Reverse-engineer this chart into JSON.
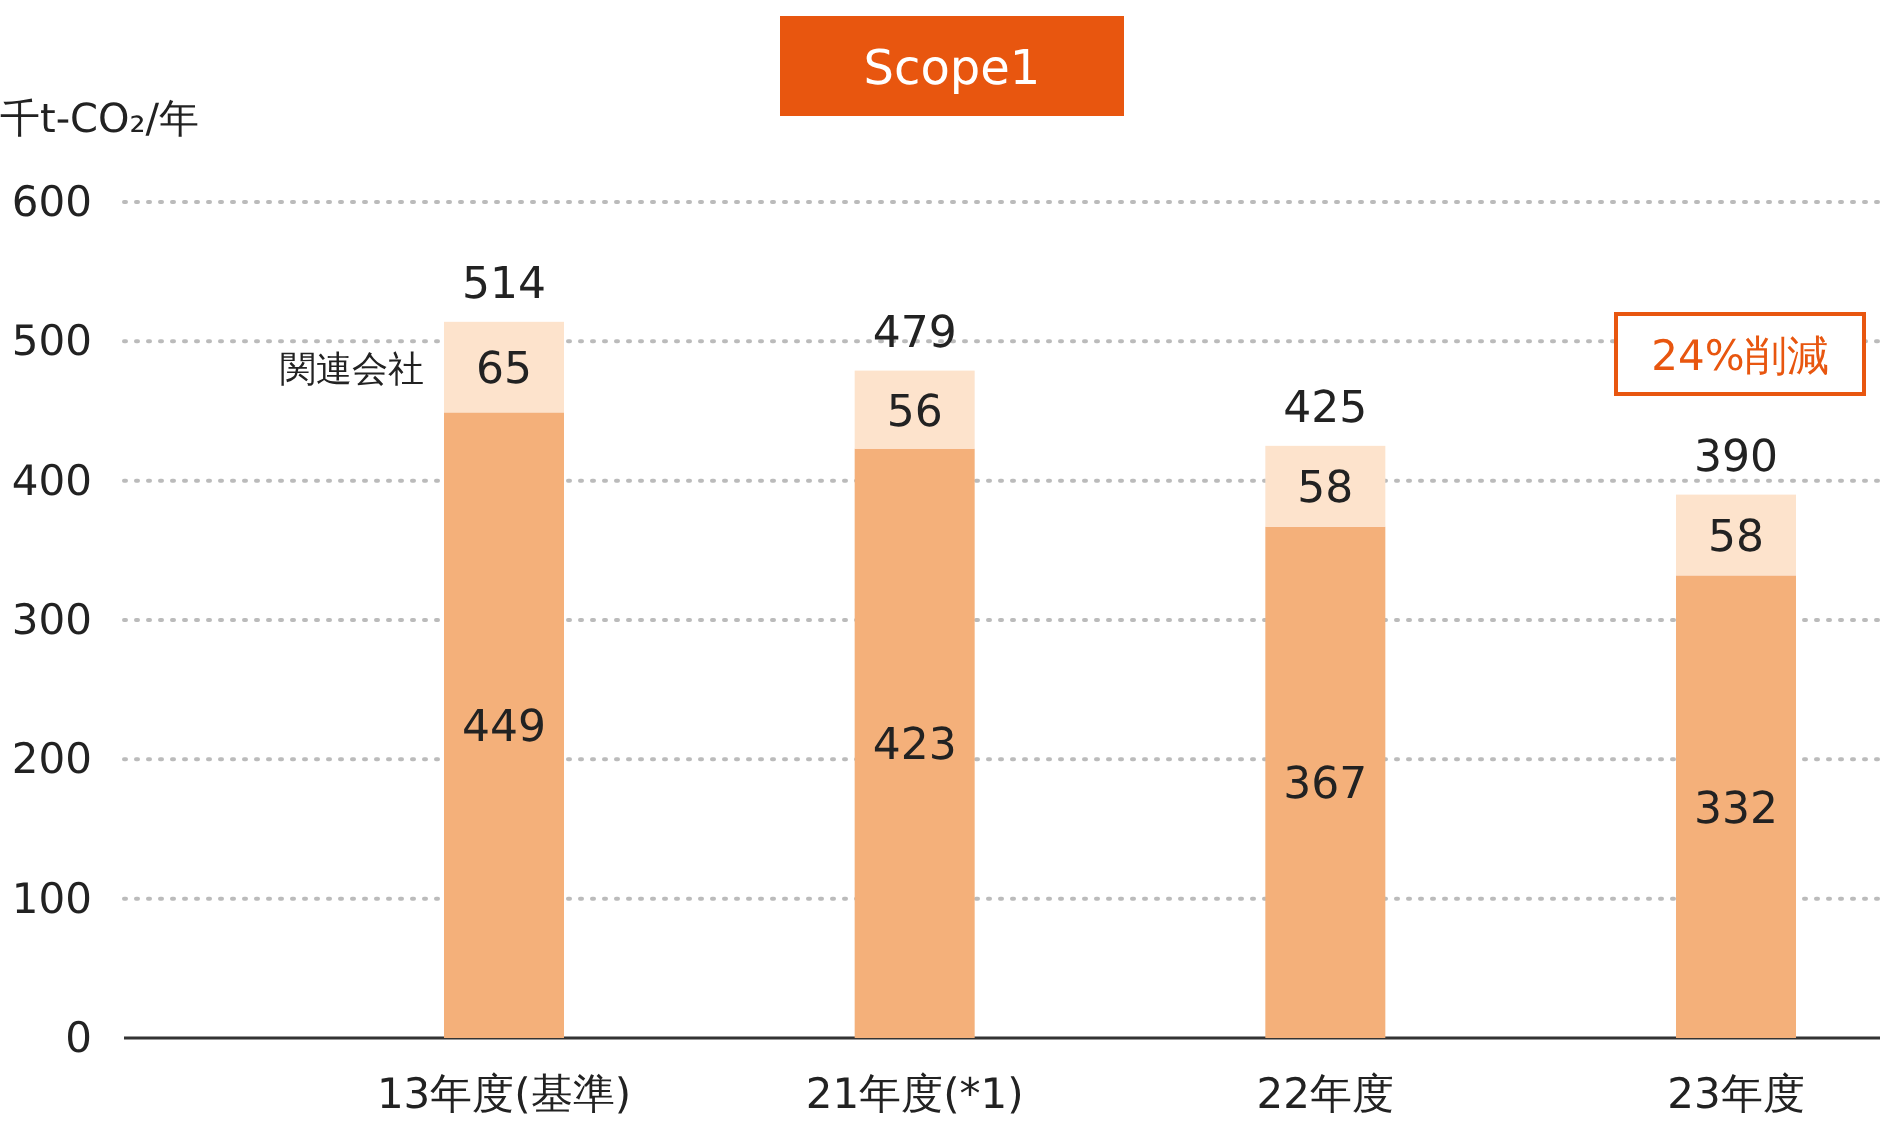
{
  "chart_data": {
    "type": "bar",
    "title": "Scope1",
    "ylabel": "千t-CO₂/年",
    "categories": [
      "13年度(基準)",
      "21年度(*1)",
      "22年度",
      "23年度"
    ],
    "series": [
      {
        "color": "#f4b07a",
        "values": [
          449,
          423,
          367,
          332
        ]
      },
      {
        "name": "関連会社",
        "color": "#fde3cc",
        "values": [
          65,
          56,
          58,
          58
        ]
      }
    ],
    "stacked": true,
    "data_labels": true,
    "totals": [
      "514",
      "479",
      "425",
      "390"
    ],
    "ylim": [
      0,
      600
    ],
    "yticks": [
      0,
      100,
      200,
      300,
      400,
      500,
      600
    ],
    "grid": "y",
    "annotations": [
      "24%削減"
    ]
  }
}
